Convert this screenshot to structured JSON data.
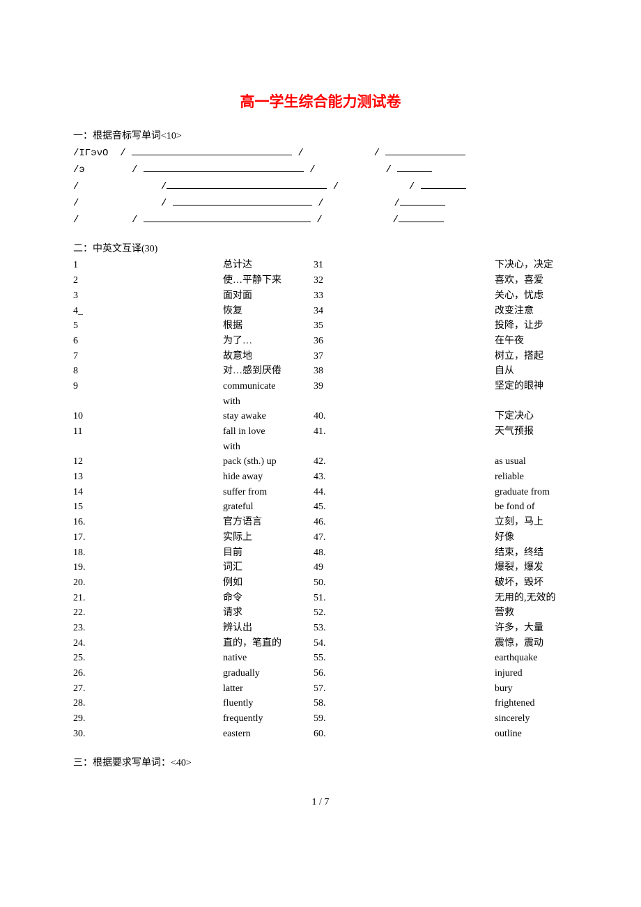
{
  "title": "高一学生综合能力测试卷",
  "sections": {
    "s1": "一：根据音标写单词<10>",
    "s2": "二：中英文互译(30)",
    "s3": "三：根据要求写单词：<40>"
  },
  "phonetic": {
    "lines": [
      {
        "prefix": "/IГэνO  / ",
        "blank_w": 230,
        "mid": " /            / ",
        "blank2_w": 115
      },
      {
        "prefix": "/э        / ",
        "blank_w": 230,
        "mid": " /            / ",
        "blank2_w": 50
      },
      {
        "prefix": "/              /",
        "blank_w": 230,
        "mid": " /            / ",
        "blank2_w": 65
      },
      {
        "prefix": "/              / ",
        "blank_w": 200,
        "mid": " /            /",
        "blank2_w": 65
      },
      {
        "prefix": "/         / ",
        "blank_w": 240,
        "mid": " /            /",
        "blank2_w": 65
      }
    ]
  },
  "translations": {
    "left": [
      {
        "n": "1",
        "t": "总计达"
      },
      {
        "n": "2",
        "t": "使…平静下来"
      },
      {
        "n": "3",
        "t": "面对面"
      },
      {
        "n": "4_",
        "t": "恢复"
      },
      {
        "n": "5",
        "t": "根据"
      },
      {
        "n": "6",
        "t": "为了…"
      },
      {
        "n": "7",
        "t": "故意地"
      },
      {
        "n": "8",
        "t": "对…感到厌倦"
      },
      {
        "n": "9",
        "t": " communicate with"
      },
      {
        "n": "10",
        "t": " stay awake"
      },
      {
        "n": "11",
        "t": " fall in love with"
      },
      {
        "n": "12",
        "t": " pack (sth.) up"
      },
      {
        "n": "13",
        "t": " hide away"
      },
      {
        "n": "14",
        "t": " suffer from"
      },
      {
        "n": "15",
        "t": " grateful"
      },
      {
        "n": "16.",
        "t": "官方语言"
      },
      {
        "n": "17.",
        "t": "实际上"
      },
      {
        "n": "18.",
        "t": "目前"
      },
      {
        "n": "19.",
        "t": "词汇"
      },
      {
        "n": "20.",
        "t": "例如"
      },
      {
        "n": "21.",
        "t": "命令"
      },
      {
        "n": "22.",
        "t": "请求"
      },
      {
        "n": "23.",
        "t": "辨认出"
      },
      {
        "n": "24.",
        "t": "直的，笔直的"
      },
      {
        "n": "25.",
        "t": "native"
      },
      {
        "n": "26.",
        "t": "gradually"
      },
      {
        "n": "27.",
        "t": "latter"
      },
      {
        "n": "28.",
        "t": "fluently"
      },
      {
        "n": "29.",
        "t": "frequently"
      },
      {
        "n": "30.",
        "t": "eastern"
      }
    ],
    "right": [
      {
        "n": "31",
        "t": "下决心，决定"
      },
      {
        "n": "32",
        "t": "喜欢，喜爱"
      },
      {
        "n": "33",
        "t": "关心，忧虑"
      },
      {
        "n": "34",
        "t": "改变注意"
      },
      {
        "n": "35",
        "t": "投降，让步"
      },
      {
        "n": "36",
        "t": "在午夜"
      },
      {
        "n": "37",
        "t": "树立，搭起"
      },
      {
        "n": "38",
        "t": "自从"
      },
      {
        "n": "39",
        "t": "坚定的眼神"
      },
      {
        "n": "",
        "t": ""
      },
      {
        "n": "40.",
        "t": "下定决心"
      },
      {
        "n": "41.",
        "t": "天气预报"
      },
      {
        "n": "",
        "t": ""
      },
      {
        "n": "42.",
        "t": "as usual"
      },
      {
        "n": "43.",
        "t": "reliable"
      },
      {
        "n": "44.",
        "t": "graduate from"
      },
      {
        "n": "45.",
        "t": "be fond of"
      },
      {
        "n": "46.",
        "t": "立刻，马上"
      },
      {
        "n": "47.",
        "t": "好像"
      },
      {
        "n": "48.",
        "t": "结束，终结"
      },
      {
        "n": "49",
        "t": "爆裂，爆发"
      },
      {
        "n": "50.",
        "t": "破坏，毁坏"
      },
      {
        "n": "51.",
        "t": "无用的,无效的"
      },
      {
        "n": "52.",
        "t": "营救"
      },
      {
        "n": "53.",
        "t": "许多，大量"
      },
      {
        "n": "54.",
        "t": "震惊，震动"
      },
      {
        "n": "55.",
        "t": "earthquake"
      },
      {
        "n": "56.",
        "t": "injured"
      },
      {
        "n": "57.",
        "t": "bury"
      },
      {
        "n": "58.",
        "t": "frightened"
      },
      {
        "n": "59.",
        "t": "sincerely"
      },
      {
        "n": "60.",
        "t": "outline"
      }
    ]
  },
  "footer": "1 / 7"
}
